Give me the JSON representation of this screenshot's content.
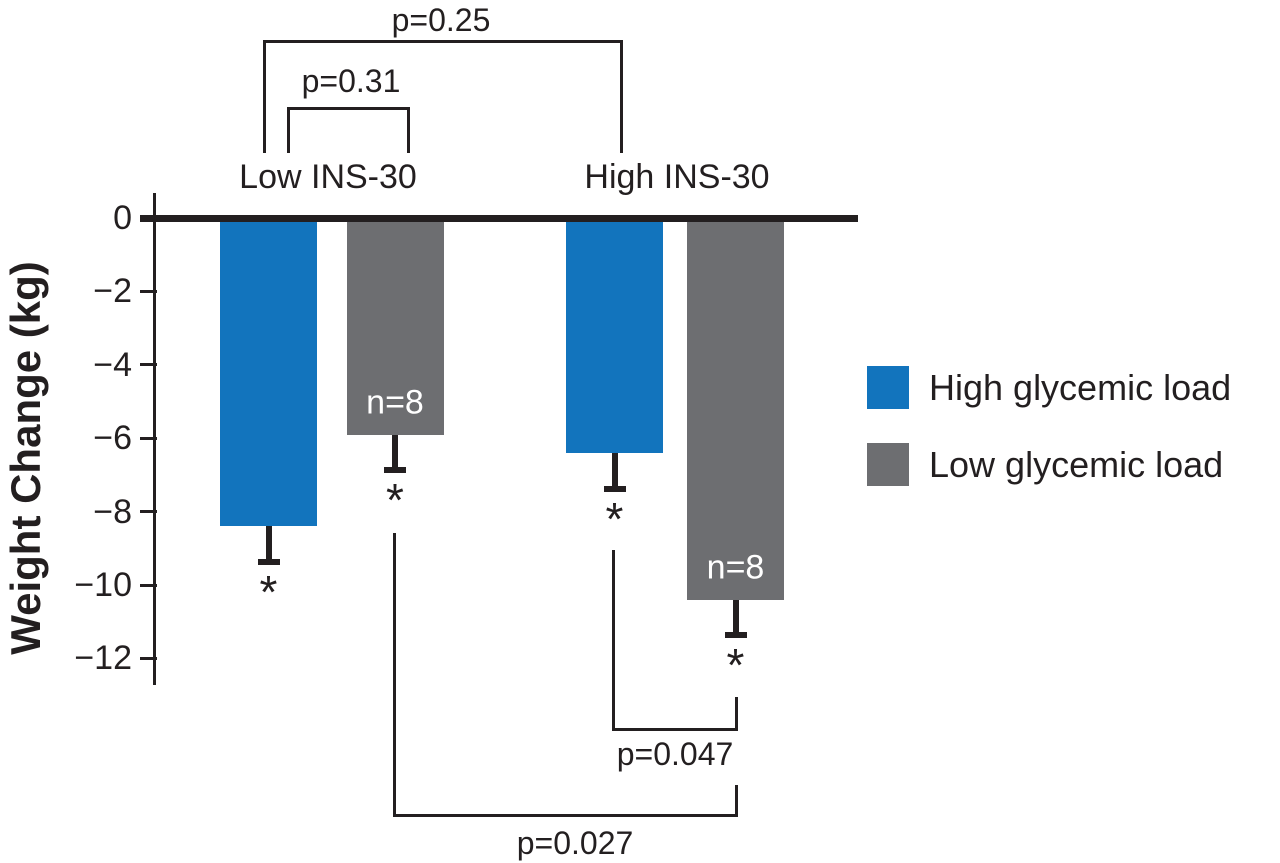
{
  "chart_data": {
    "type": "bar",
    "title": "",
    "ylabel": "Weight Change (kg)",
    "ylim": [
      -13,
      0
    ],
    "yticks": [
      0,
      -2,
      -4,
      -6,
      -8,
      -10,
      -12
    ],
    "ytick_labels": [
      "0",
      "−2",
      "−4",
      "−6",
      "−8",
      "−10",
      "−12"
    ],
    "categories": [
      "Low INS-30",
      "High INS-30"
    ],
    "series": [
      {
        "name": "High glycemic load",
        "color": "#1274bd",
        "values": [
          -8.4,
          -6.4
        ],
        "errors": [
          1.0,
          1.0
        ]
      },
      {
        "name": "Low glycemic load",
        "color": "#6d6e71",
        "values": [
          -5.9,
          -10.4
        ],
        "errors": [
          1.0,
          1.0
        ]
      }
    ],
    "n_labels": [
      "n=8",
      "n=8"
    ],
    "sig_marker": "*",
    "p_values": {
      "top_outer": "p=0.25",
      "top_inner": "p=0.31",
      "bottom_inner": "p=0.047",
      "bottom_outer": "p=0.027"
    },
    "legend_position": "right",
    "grid": false
  },
  "colors": {
    "axis": "#231f20",
    "background": "#ffffff",
    "high_glycemic_load": "#1274bd",
    "low_glycemic_load": "#6d6e71"
  }
}
